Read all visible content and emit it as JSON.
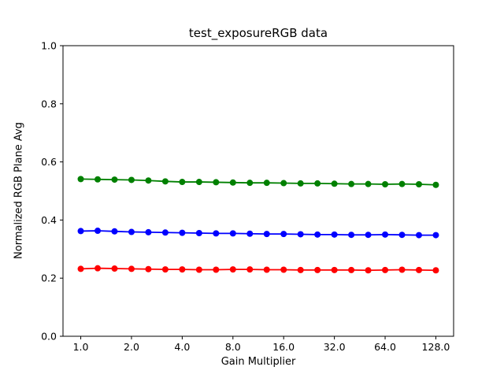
{
  "title": "test_exposureRGB data",
  "chart_data": {
    "type": "line",
    "title": "test_exposureRGB data",
    "xlabel": "Gain Multiplier",
    "ylabel": "Normalized RGB Plane Avg",
    "xscale": "log2",
    "ylim": [
      0.0,
      1.0
    ],
    "xlim": [
      1.0,
      128.0
    ],
    "grid": false,
    "legend": "none",
    "xticks": [
      1.0,
      2.0,
      4.0,
      8.0,
      16.0,
      32.0,
      64.0,
      128.0
    ],
    "xtick_labels": [
      "1.0",
      "2.0",
      "4.0",
      "8.0",
      "16.0",
      "32.0",
      "64.0",
      "128.0"
    ],
    "yticks": [
      0.0,
      0.2,
      0.4,
      0.6,
      0.8,
      1.0
    ],
    "ytick_labels": [
      "0.0",
      "0.2",
      "0.4",
      "0.6",
      "0.8",
      "1.0"
    ],
    "x": [
      1.0,
      1.26,
      1.587,
      2.0,
      2.52,
      3.175,
      4.0,
      5.04,
      6.35,
      8.0,
      10.08,
      12.7,
      16.0,
      20.16,
      25.4,
      32.0,
      40.32,
      50.8,
      64.0,
      80.63,
      101.59,
      128.0
    ],
    "series": [
      {
        "name": "green",
        "color": "#008000",
        "marker": "circle",
        "values": [
          0.541,
          0.54,
          0.539,
          0.538,
          0.536,
          0.533,
          0.531,
          0.531,
          0.53,
          0.529,
          0.528,
          0.528,
          0.527,
          0.526,
          0.526,
          0.525,
          0.524,
          0.524,
          0.523,
          0.524,
          0.523,
          0.521
        ]
      },
      {
        "name": "blue",
        "color": "#0000ff",
        "marker": "circle",
        "values": [
          0.362,
          0.363,
          0.361,
          0.359,
          0.358,
          0.357,
          0.356,
          0.355,
          0.354,
          0.354,
          0.353,
          0.352,
          0.352,
          0.351,
          0.35,
          0.35,
          0.349,
          0.349,
          0.35,
          0.349,
          0.348,
          0.348
        ]
      },
      {
        "name": "red",
        "color": "#ff0000",
        "marker": "circle",
        "values": [
          0.232,
          0.234,
          0.233,
          0.232,
          0.231,
          0.23,
          0.23,
          0.229,
          0.229,
          0.23,
          0.23,
          0.229,
          0.229,
          0.228,
          0.228,
          0.228,
          0.228,
          0.227,
          0.228,
          0.229,
          0.228,
          0.227
        ]
      }
    ]
  }
}
